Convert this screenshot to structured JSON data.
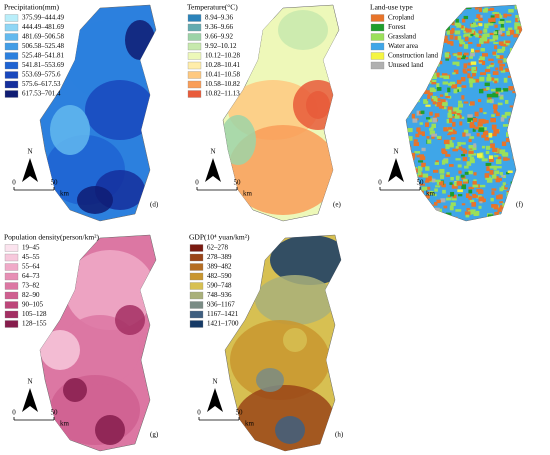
{
  "panels": [
    {
      "title": "Precipitation(mm)",
      "label": "(d)",
      "north": "N",
      "scale": [
        "0",
        "50",
        "km"
      ],
      "legend": [
        {
          "label": "375.99–444.49",
          "color": "#b9eefa"
        },
        {
          "label": "444.49–481.69",
          "color": "#8fd6f5"
        },
        {
          "label": "481.69–506.58",
          "color": "#63b9ee"
        },
        {
          "label": "506.58–525.48",
          "color": "#439de6"
        },
        {
          "label": "525.48–541.81",
          "color": "#2c80de"
        },
        {
          "label": "541.81–553.69",
          "color": "#1e63d2"
        },
        {
          "label": "553.69–575.6",
          "color": "#1948bd"
        },
        {
          "label": "575.6–617.53",
          "color": "#152f9c"
        },
        {
          "label": "617.53–701.4",
          "color": "#0f1c73"
        }
      ]
    },
    {
      "title": "Temperature(°C)",
      "label": "(e)",
      "north": "N",
      "scale": [
        "0",
        "50",
        "km"
      ],
      "legend": [
        {
          "label": "8.94–9.36",
          "color": "#2b83ba"
        },
        {
          "label": "9.36–9.66",
          "color": "#64abb0"
        },
        {
          "label": "9.66–9.92",
          "color": "#9dd3a7"
        },
        {
          "label": "9.92–10.12",
          "color": "#c7e9ad"
        },
        {
          "label": "10.12–10.28",
          "color": "#edf8b9"
        },
        {
          "label": "10.28–10.41",
          "color": "#ffedaa"
        },
        {
          "label": "10.41–10.58",
          "color": "#fec980"
        },
        {
          "label": "10.58–10.82",
          "color": "#f99e59"
        },
        {
          "label": "10.82–11.13",
          "color": "#e85b3a"
        }
      ]
    },
    {
      "title": "Land-use type",
      "label": "(f)",
      "north": "N",
      "scale": [
        "0",
        "50",
        "km"
      ],
      "legend": [
        {
          "label": "Cropland",
          "color": "#e8742a"
        },
        {
          "label": "Forest",
          "color": "#1f9e2c"
        },
        {
          "label": "Grassland",
          "color": "#9be05a"
        },
        {
          "label": "Water area",
          "color": "#3fa6e8"
        },
        {
          "label": "Construction land",
          "color": "#f5f542"
        },
        {
          "label": "Unused land",
          "color": "#b0b0b0"
        }
      ]
    },
    {
      "title": "Population density(person/km²)",
      "label": "(g)",
      "north": "N",
      "scale": [
        "0",
        "50",
        "km"
      ],
      "legend": [
        {
          "label": "19–45",
          "color": "#fbe3ee"
        },
        {
          "label": "45–55",
          "color": "#f7c8dc"
        },
        {
          "label": "55–64",
          "color": "#f0aac8"
        },
        {
          "label": "64–73",
          "color": "#e78fb5"
        },
        {
          "label": "73–82",
          "color": "#dc77a3"
        },
        {
          "label": "82–90",
          "color": "#cf5f90"
        },
        {
          "label": "90–105",
          "color": "#bd467a"
        },
        {
          "label": "105–128",
          "color": "#a32f63"
        },
        {
          "label": "128–155",
          "color": "#861c4c"
        }
      ]
    },
    {
      "title": "GDP(10⁴ yuan/km²)",
      "label": "(h)",
      "north": "N",
      "scale": [
        "0",
        "50",
        "km"
      ],
      "legend": [
        {
          "label": "62–278",
          "color": "#7a1a10"
        },
        {
          "label": "278–389",
          "color": "#9a4518"
        },
        {
          "label": "389–482",
          "color": "#b56d22"
        },
        {
          "label": "482–590",
          "color": "#c9962f"
        },
        {
          "label": "590–748",
          "color": "#d7c052"
        },
        {
          "label": "748–936",
          "color": "#a9b07a"
        },
        {
          "label": "936–1167",
          "color": "#7a8c85"
        },
        {
          "label": "1167–1421",
          "color": "#3f5f80"
        },
        {
          "label": "1421–1700",
          "color": "#163a66"
        }
      ]
    }
  ]
}
